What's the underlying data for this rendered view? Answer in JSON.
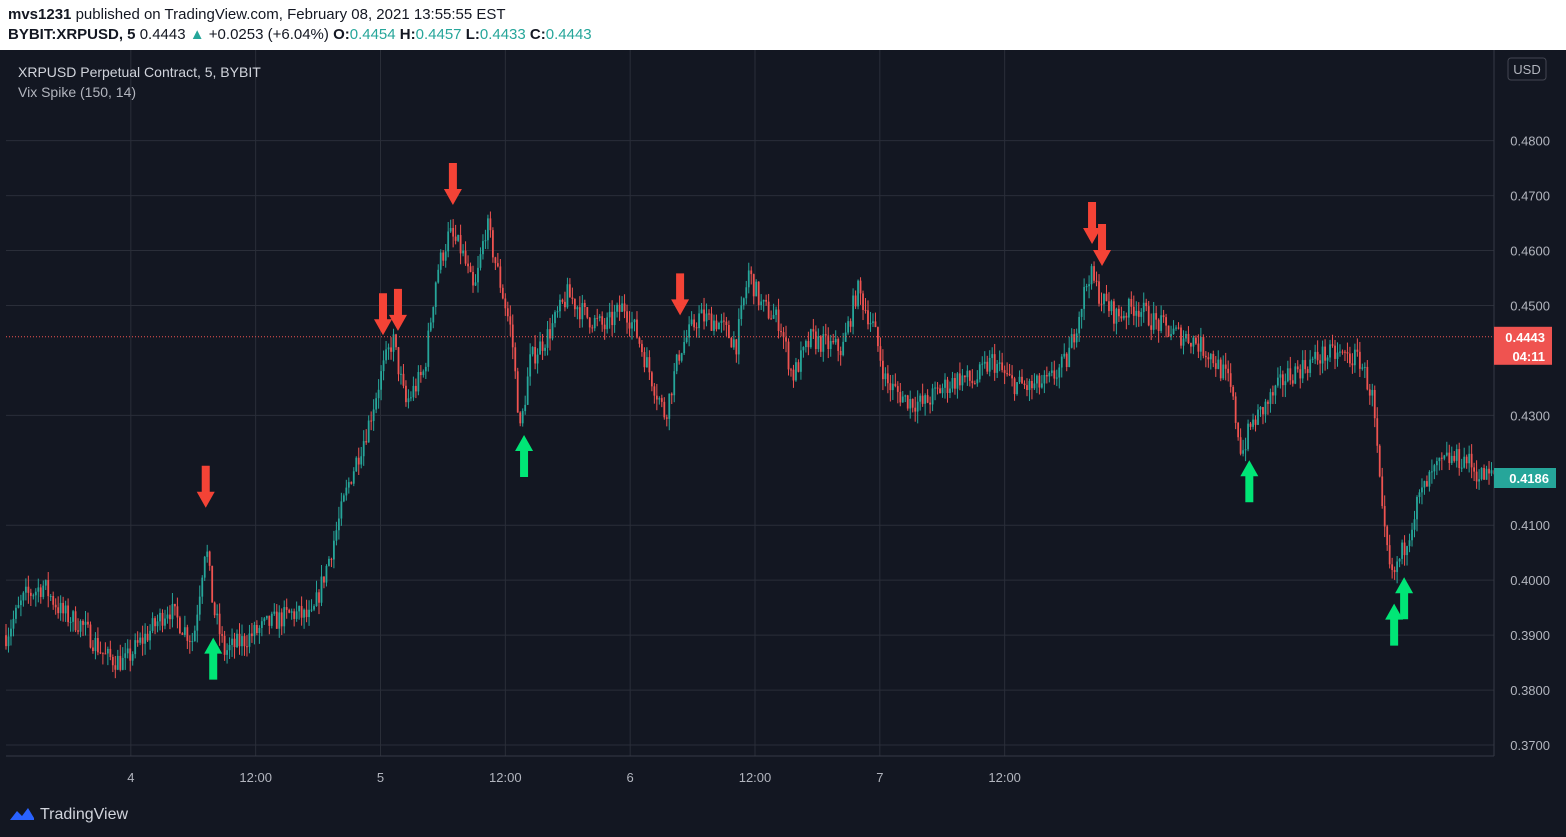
{
  "header": {
    "author": "mvs1231",
    "published_text": "published on TradingView.com, February 08, 2021 13:55:55 EST",
    "ticker": "BYBIT:XRPUSD, 5",
    "last": "0.4443",
    "change_arrow": "▲",
    "change": "+0.0253 (+6.04%)",
    "o_label": "O:",
    "o_value": "0.4454",
    "h_label": "H:",
    "h_value": "0.4457",
    "l_label": "L:",
    "l_value": "0.4433",
    "c_label": "C:",
    "c_value": "0.4443"
  },
  "legend": {
    "symbol_line": "XRPUSD Perpetual Contract, 5, BYBIT",
    "indicator_line": "Vix Spike (150, 14)"
  },
  "price_axis": {
    "currency": "USD",
    "ticks": [
      "0.4800",
      "0.4700",
      "0.4600",
      "0.4500",
      "0.4300",
      "0.4100",
      "0.4000",
      "0.3900",
      "0.3800",
      "0.3700"
    ],
    "last_price_tag": "0.4443",
    "countdown_tag": "04:11",
    "indicator_tag": "0.4186"
  },
  "time_axis": {
    "ticks": [
      "4",
      "12:00",
      "5",
      "12:00",
      "6",
      "12:00",
      "7",
      "12:00"
    ]
  },
  "footer": {
    "brand": "TradingView"
  },
  "colors": {
    "background": "#131722",
    "grid": "#2a2e39",
    "up": "#26a69a",
    "down": "#ef5350",
    "arrow_up": "#00e676",
    "arrow_down": "#f44336",
    "last_price_line": "#ef5350"
  },
  "chart_data": {
    "type": "candlestick",
    "symbol": "XRPUSD Perpetual Contract, 5, BYBIT",
    "ylim": [
      0.368,
      0.4965
    ],
    "y_ticks": [
      0.37,
      0.38,
      0.39,
      0.4,
      0.41,
      0.43,
      0.45,
      0.46,
      0.47,
      0.48
    ],
    "last_price": 0.4443,
    "indicator_value": 0.4186,
    "price_path": [
      {
        "t": 0.0,
        "p": 0.39
      },
      {
        "t": 0.15,
        "p": 0.397
      },
      {
        "t": 0.3,
        "p": 0.399
      },
      {
        "t": 0.45,
        "p": 0.394
      },
      {
        "t": 0.6,
        "p": 0.392
      },
      {
        "t": 0.8,
        "p": 0.386
      },
      {
        "t": 0.95,
        "p": 0.385
      },
      {
        "t": 1.05,
        "p": 0.388
      },
      {
        "t": 1.2,
        "p": 0.392
      },
      {
        "t": 1.3,
        "p": 0.395
      },
      {
        "t": 1.4,
        "p": 0.392
      },
      {
        "t": 1.5,
        "p": 0.389
      },
      {
        "t": 1.6,
        "p": 0.407
      },
      {
        "t": 1.66,
        "p": 0.395
      },
      {
        "t": 1.75,
        "p": 0.387
      },
      {
        "t": 1.9,
        "p": 0.389
      },
      {
        "t": 2.1,
        "p": 0.392
      },
      {
        "t": 2.3,
        "p": 0.394
      },
      {
        "t": 2.45,
        "p": 0.393
      },
      {
        "t": 2.6,
        "p": 0.405
      },
      {
        "t": 2.75,
        "p": 0.418
      },
      {
        "t": 2.9,
        "p": 0.428
      },
      {
        "t": 3.0,
        "p": 0.437
      },
      {
        "t": 3.1,
        "p": 0.444
      },
      {
        "t": 3.2,
        "p": 0.432
      },
      {
        "t": 3.35,
        "p": 0.438
      },
      {
        "t": 3.45,
        "p": 0.456
      },
      {
        "t": 3.55,
        "p": 0.463
      },
      {
        "t": 3.65,
        "p": 0.46
      },
      {
        "t": 3.75,
        "p": 0.452
      },
      {
        "t": 3.85,
        "p": 0.465
      },
      {
        "t": 3.95,
        "p": 0.455
      },
      {
        "t": 4.05,
        "p": 0.445
      },
      {
        "t": 4.12,
        "p": 0.427
      },
      {
        "t": 4.2,
        "p": 0.44
      },
      {
        "t": 4.35,
        "p": 0.445
      },
      {
        "t": 4.5,
        "p": 0.452
      },
      {
        "t": 4.65,
        "p": 0.448
      },
      {
        "t": 4.8,
        "p": 0.446
      },
      {
        "t": 4.95,
        "p": 0.45
      },
      {
        "t": 5.05,
        "p": 0.445
      },
      {
        "t": 5.2,
        "p": 0.435
      },
      {
        "t": 5.28,
        "p": 0.43
      },
      {
        "t": 5.4,
        "p": 0.442
      },
      {
        "t": 5.55,
        "p": 0.448
      },
      {
        "t": 5.7,
        "p": 0.447
      },
      {
        "t": 5.85,
        "p": 0.443
      },
      {
        "t": 5.95,
        "p": 0.456
      },
      {
        "t": 6.05,
        "p": 0.45
      },
      {
        "t": 6.2,
        "p": 0.447
      },
      {
        "t": 6.3,
        "p": 0.437
      },
      {
        "t": 6.45,
        "p": 0.444
      },
      {
        "t": 6.55,
        "p": 0.443
      },
      {
        "t": 6.7,
        "p": 0.442
      },
      {
        "t": 6.82,
        "p": 0.453
      },
      {
        "t": 6.95,
        "p": 0.446
      },
      {
        "t": 7.05,
        "p": 0.436
      },
      {
        "t": 7.2,
        "p": 0.433
      },
      {
        "t": 7.35,
        "p": 0.432
      },
      {
        "t": 7.5,
        "p": 0.435
      },
      {
        "t": 7.65,
        "p": 0.437
      },
      {
        "t": 7.75,
        "p": 0.436
      },
      {
        "t": 7.9,
        "p": 0.44
      },
      {
        "t": 8.05,
        "p": 0.436
      },
      {
        "t": 8.2,
        "p": 0.435
      },
      {
        "t": 8.35,
        "p": 0.436
      },
      {
        "t": 8.5,
        "p": 0.44
      },
      {
        "t": 8.6,
        "p": 0.449
      },
      {
        "t": 8.68,
        "p": 0.456
      },
      {
        "t": 8.78,
        "p": 0.451
      },
      {
        "t": 8.9,
        "p": 0.448
      },
      {
        "t": 9.05,
        "p": 0.45
      },
      {
        "t": 9.2,
        "p": 0.447
      },
      {
        "t": 9.35,
        "p": 0.445
      },
      {
        "t": 9.5,
        "p": 0.444
      },
      {
        "t": 9.65,
        "p": 0.441
      },
      {
        "t": 9.8,
        "p": 0.436
      },
      {
        "t": 9.9,
        "p": 0.423
      },
      {
        "t": 9.97,
        "p": 0.428
      },
      {
        "t": 10.1,
        "p": 0.432
      },
      {
        "t": 10.25,
        "p": 0.437
      },
      {
        "t": 10.4,
        "p": 0.439
      },
      {
        "t": 10.55,
        "p": 0.441
      },
      {
        "t": 10.7,
        "p": 0.441
      },
      {
        "t": 10.85,
        "p": 0.44
      },
      {
        "t": 10.95,
        "p": 0.433
      },
      {
        "t": 11.03,
        "p": 0.41
      },
      {
        "t": 11.1,
        "p": 0.4
      },
      {
        "t": 11.2,
        "p": 0.406
      },
      {
        "t": 11.32,
        "p": 0.415
      },
      {
        "t": 11.45,
        "p": 0.42
      },
      {
        "t": 11.55,
        "p": 0.422
      },
      {
        "t": 11.7,
        "p": 0.422
      },
      {
        "t": 11.8,
        "p": 0.419
      }
    ],
    "signals": [
      {
        "type": "spike-high",
        "t": 1.6
      },
      {
        "type": "spike-low",
        "t": 1.66
      },
      {
        "type": "spike-high",
        "t": 3.02
      },
      {
        "type": "spike-high",
        "t": 3.14
      },
      {
        "type": "spike-high",
        "t": 3.58
      },
      {
        "type": "spike-low",
        "t": 4.15
      },
      {
        "type": "spike-high",
        "t": 5.4
      },
      {
        "type": "spike-high",
        "t": 8.7
      },
      {
        "type": "spike-high",
        "t": 8.78
      },
      {
        "type": "spike-low",
        "t": 9.96
      },
      {
        "type": "spike-low",
        "t": 11.12
      },
      {
        "type": "spike-low",
        "t": 11.2
      }
    ]
  }
}
